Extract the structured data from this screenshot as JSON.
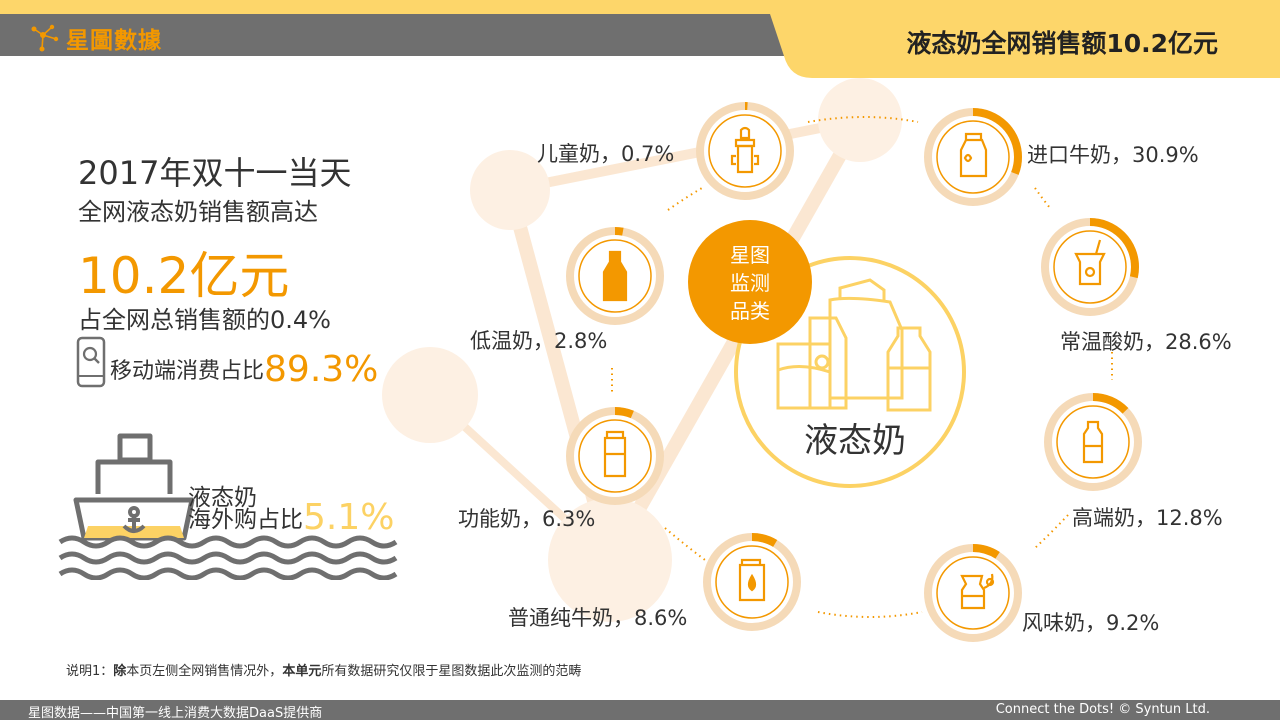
{
  "header": {
    "brand": "星圖數據",
    "title": "液态奶全网销售额10.2亿元"
  },
  "summary": {
    "year_line": "2017年双十一当天",
    "subline": "全网液态奶销售额高达",
    "total_value": "10.2亿元",
    "share_line": "占全网总销售额的0.4%",
    "mobile_label": "移动端消费占比",
    "mobile_value": "89.3%",
    "overseas_line1": "液态奶",
    "overseas_line2": "海外购占比",
    "overseas_value": "5.1%"
  },
  "center": {
    "badge_lines": [
      "星图",
      "监测",
      "品类"
    ],
    "label": "液态奶"
  },
  "colors": {
    "accent": "#f39800",
    "accent_light": "#fcd264",
    "bg_circle": "#fdf0e3",
    "ring_track": "#f5dab8",
    "header_gray": "#6f6f6f",
    "header_yellow": "#fdd66a"
  },
  "chart_data": {
    "type": "pie",
    "categories": [
      "进口牛奶",
      "常温酸奶",
      "高端奶",
      "风味奶",
      "普通纯牛奶",
      "功能奶",
      "低温奶",
      "儿童奶"
    ],
    "values": [
      30.9,
      28.6,
      12.8,
      9.2,
      8.6,
      6.3,
      2.8,
      0.7
    ],
    "labels": [
      "进口牛奶，30.9%",
      "常温酸奶，28.6%",
      "高端奶，12.8%",
      "风味奶，9.2%",
      "普通纯牛奶，8.6%",
      "功能奶，6.3%",
      "低温奶，2.8%",
      "儿童奶，0.7%"
    ],
    "icons": [
      "milk-carton-icon",
      "yogurt-cup-icon",
      "milk-bottle-icon",
      "milk-jug-icon",
      "milk-box-icon",
      "tall-carton-icon",
      "glass-bottle-icon",
      "baby-bottle-icon"
    ],
    "unit": "%"
  },
  "note": {
    "prefix": "说明1：",
    "b1": "除",
    "t1": "本页左侧全网销售情况外，",
    "b2": "本单元",
    "t2": "所有数据研究仅限于星图数据此次监测的范畴"
  },
  "footer": {
    "left": "星图数据——中国第一线上消费大数据DaaS提供商",
    "right": "Connect the Dots! © Syntun Ltd."
  }
}
